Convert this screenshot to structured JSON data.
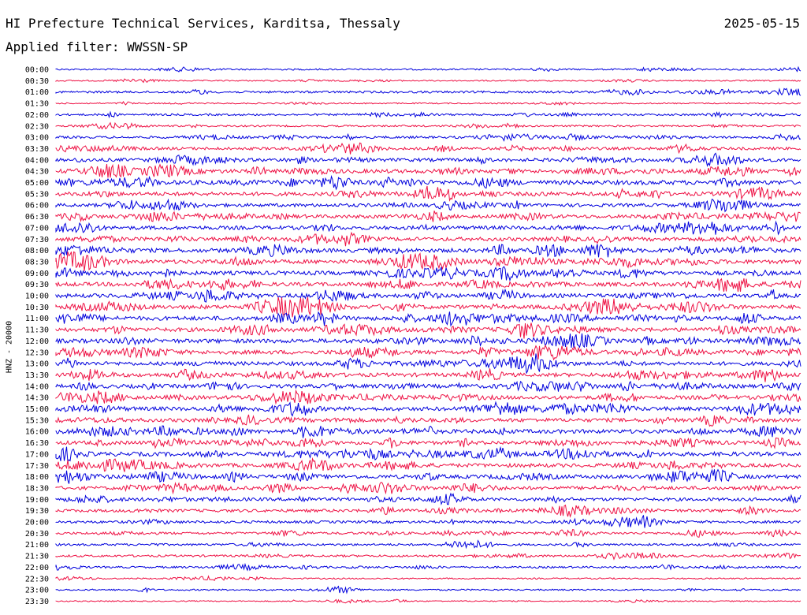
{
  "header": {
    "station": "HI Prefecture Technical Services, Karditsa, Thessaly",
    "date": "2025-05-15",
    "filter": "Applied filter: WWSSN-SP"
  },
  "colors": {
    "even_trace": "#0000dd",
    "odd_trace": "#ee1144",
    "text": "#000000"
  },
  "chart_data": {
    "type": "line",
    "title": "",
    "ylabel": "HNZ - 20000",
    "xlabel": "",
    "grid": false,
    "legend": "none",
    "series_alternating_colors": [
      "blue",
      "red"
    ],
    "rows": [
      {
        "label": "00:00",
        "activity": 0.15
      },
      {
        "label": "00:30",
        "activity": 0.08
      },
      {
        "label": "01:00",
        "activity": 0.3
      },
      {
        "label": "01:30",
        "activity": 0.08
      },
      {
        "label": "02:00",
        "activity": 0.25
      },
      {
        "label": "02:30",
        "activity": 0.2
      },
      {
        "label": "03:00",
        "activity": 0.35
      },
      {
        "label": "03:30",
        "activity": 0.45
      },
      {
        "label": "04:00",
        "activity": 0.6
      },
      {
        "label": "04:30",
        "activity": 0.75
      },
      {
        "label": "05:00",
        "activity": 0.85
      },
      {
        "label": "05:30",
        "activity": 0.7
      },
      {
        "label": "06:00",
        "activity": 0.6
      },
      {
        "label": "06:30",
        "activity": 0.65
      },
      {
        "label": "07:00",
        "activity": 0.7
      },
      {
        "label": "07:30",
        "activity": 0.7
      },
      {
        "label": "08:00",
        "activity": 0.75
      },
      {
        "label": "08:30",
        "activity": 0.75
      },
      {
        "label": "09:00",
        "activity": 0.75
      },
      {
        "label": "09:30",
        "activity": 0.75
      },
      {
        "label": "10:00",
        "activity": 0.75
      },
      {
        "label": "10:30",
        "activity": 0.75
      },
      {
        "label": "11:00",
        "activity": 0.8
      },
      {
        "label": "11:30",
        "activity": 0.75
      },
      {
        "label": "12:00",
        "activity": 0.8
      },
      {
        "label": "12:30",
        "activity": 0.75
      },
      {
        "label": "13:00",
        "activity": 0.7
      },
      {
        "label": "13:30",
        "activity": 0.7
      },
      {
        "label": "14:00",
        "activity": 0.7
      },
      {
        "label": "14:30",
        "activity": 0.7
      },
      {
        "label": "15:00",
        "activity": 0.75
      },
      {
        "label": "15:30",
        "activity": 0.7
      },
      {
        "label": "16:00",
        "activity": 0.75
      },
      {
        "label": "16:30",
        "activity": 0.7
      },
      {
        "label": "17:00",
        "activity": 0.8
      },
      {
        "label": "17:30",
        "activity": 0.7
      },
      {
        "label": "18:00",
        "activity": 0.7
      },
      {
        "label": "18:30",
        "activity": 0.6
      },
      {
        "label": "19:00",
        "activity": 0.55
      },
      {
        "label": "19:30",
        "activity": 0.5
      },
      {
        "label": "20:00",
        "activity": 0.4
      },
      {
        "label": "20:30",
        "activity": 0.35
      },
      {
        "label": "21:00",
        "activity": 0.3
      },
      {
        "label": "21:30",
        "activity": 0.3
      },
      {
        "label": "22:00",
        "activity": 0.25
      },
      {
        "label": "22:30",
        "activity": 0.1
      },
      {
        "label": "23:00",
        "activity": 0.15
      },
      {
        "label": "23:30",
        "activity": 0.05
      }
    ]
  }
}
